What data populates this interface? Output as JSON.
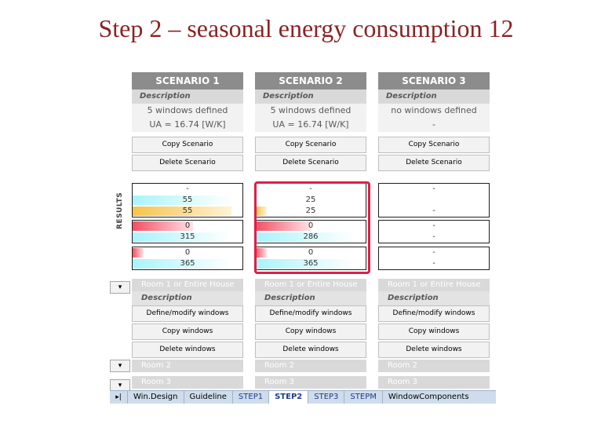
{
  "slide_title": "Step 2 – seasonal energy consumption 12",
  "scenarios": [
    {
      "header": "SCENARIO 1",
      "description_label": "Description",
      "windows_text": "5 windows defined",
      "ua_text": "UA = 16.74 [W/K]",
      "copy_label": "Copy Scenario",
      "delete_label": "Delete Scenario",
      "results": [
        "-",
        "55",
        "55",
        "0",
        "315",
        "0",
        "365"
      ],
      "room1_label": "Room 1 or Entire House",
      "room_description_label": "Description",
      "define_label": "Define/modify windows",
      "copy_windows_label": "Copy windows",
      "delete_windows_label": "Delete windows",
      "room2_label": "Room 2",
      "room3_label": "Room 3"
    },
    {
      "header": "SCENARIO 2",
      "description_label": "Description",
      "windows_text": "5 windows defined",
      "ua_text": "UA = 16.74 [W/K]",
      "copy_label": "Copy Scenario",
      "delete_label": "Delete Scenario",
      "results": [
        "-",
        "25",
        "25",
        "0",
        "286",
        "0",
        "365"
      ],
      "room1_label": "Room 1 or Entire House",
      "room_description_label": "Description",
      "define_label": "Define/modify windows",
      "copy_windows_label": "Copy windows",
      "delete_windows_label": "Delete windows",
      "room2_label": "Room 2",
      "room3_label": "Room 3"
    },
    {
      "header": "SCENARIO 3",
      "description_label": "Description",
      "windows_text": "no windows defined",
      "ua_text": "-",
      "copy_label": "Copy Scenario",
      "delete_label": "Delete Scenario",
      "results": [
        "-",
        "",
        "-",
        "-",
        "-",
        "-",
        "-"
      ],
      "room1_label": "Room 1 or Entire House",
      "room_description_label": "Description",
      "define_label": "Define/modify windows",
      "copy_windows_label": "Copy windows",
      "delete_windows_label": "Delete windows",
      "room2_label": "Room 2",
      "room3_label": "Room 3"
    }
  ],
  "results_label": "RESULTS",
  "collapse_glyph": "▾",
  "tab_nav_glyph": "▸|",
  "tabs": [
    "Win.Design",
    "Guideline",
    "STEP1",
    "STEP2",
    "STEP3",
    "STEPM",
    "WindowComponents"
  ],
  "active_tab": "STEP2",
  "colors": {
    "title": "#8b2323",
    "highlight": "#e11d48",
    "header_bg": "#8c8c8c",
    "bar_cyan": "#a8f4fb",
    "bar_yellow": "#f7c34a",
    "bar_red": "#f05065"
  },
  "result_fill_levels": [
    [
      0,
      0.9,
      0.9,
      0.55,
      0.9,
      0.1,
      0.9
    ],
    [
      0,
      0,
      0.1,
      0.5,
      0.9,
      0.1,
      0.9
    ],
    [
      0,
      0,
      0,
      0,
      0,
      0,
      0
    ]
  ]
}
